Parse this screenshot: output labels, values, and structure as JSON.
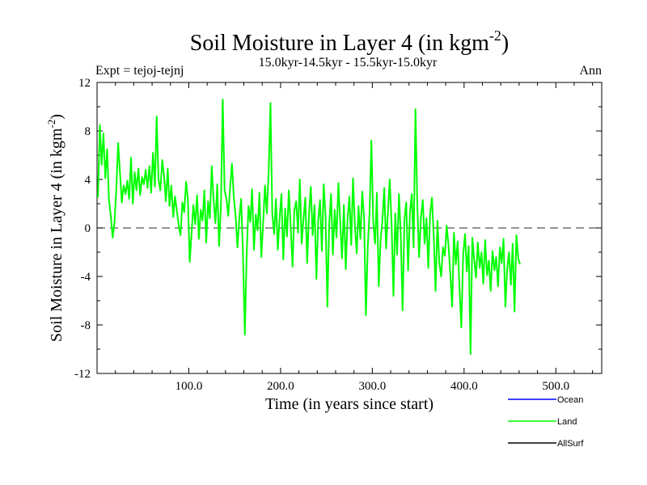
{
  "chart_data": {
    "type": "line",
    "title_main": "Soil Moisture in Layer 4 (in kgm",
    "title_sup": "-2",
    "title_close": ")",
    "subtitle": "15.0kyr-14.5kyr - 15.5kyr-15.0kyr",
    "expt_label": "Expt = tejoj-tejnj",
    "season_label": "Ann",
    "xlabel": "Time (in years since start)",
    "ylabel_main": "Soil Moisture in Layer 4 (in kgm",
    "ylabel_sup": "-2",
    "ylabel_close": ")",
    "xlim": [
      0,
      550
    ],
    "ylim": [
      -12,
      12
    ],
    "x_ticks": [
      100,
      200,
      300,
      400,
      500
    ],
    "x_tick_labels": [
      "100.0",
      "200.0",
      "300.0",
      "400.0",
      "500.0"
    ],
    "y_ticks": [
      -12,
      -8,
      -4,
      0,
      4,
      8,
      12
    ],
    "y_tick_labels": [
      "-12",
      "-8",
      "-4",
      "0",
      "4",
      "8",
      "12"
    ],
    "zero_line": true,
    "legend_position": "bottom-right",
    "legend": [
      {
        "name": "Ocean",
        "color": "#0000ff"
      },
      {
        "name": "Land",
        "color": "#00ff00"
      },
      {
        "name": "AllSurf",
        "color": "#000000"
      }
    ],
    "series": [
      {
        "name": "Land",
        "color": "#00ff00",
        "x_start": 1,
        "x_step": 2,
        "values": [
          2.5,
          8.5,
          5.2,
          7.8,
          4.1,
          6.5,
          2.3,
          1.0,
          -0.8,
          0.5,
          3.2,
          7.0,
          4.5,
          2.1,
          3.5,
          2.8,
          3.9,
          2.4,
          5.8,
          2.0,
          4.6,
          3.1,
          4.9,
          2.7,
          4.2,
          3.6,
          4.8,
          3.3,
          5.1,
          2.9,
          6.2,
          3.4,
          9.2,
          4.0,
          3.1,
          5.6,
          4.3,
          2.2,
          4.9,
          1.8,
          3.5,
          0.9,
          2.6,
          1.4,
          0.2,
          -0.6,
          2.1,
          1.3,
          3.8,
          2.4,
          -2.8,
          -0.4,
          1.9,
          0.3,
          2.7,
          -0.9,
          1.5,
          0.6,
          3.1,
          -1.2,
          2.2,
          0.8,
          5.1,
          2.3,
          0.4,
          3.6,
          -1.5,
          1.9,
          10.6,
          3.1,
          2.4,
          1.0,
          3.3,
          5.3,
          2.6,
          1.0,
          -1.6,
          0.8,
          2.4,
          -2.0,
          -8.8,
          -2.5,
          1.8,
          0.5,
          3.2,
          -1.8,
          1.1,
          -0.2,
          2.9,
          -2.4,
          0.4,
          3.5,
          1.2,
          4.6,
          10.3,
          1.1,
          -0.5,
          2.4,
          -1.8,
          0.9,
          2.8,
          -2.6,
          1.6,
          -0.7,
          3.1,
          0.2,
          -3.2,
          1.4,
          2.2,
          -0.4,
          4.0,
          -1.3,
          0.8,
          2.5,
          -2.9,
          1.2,
          3.4,
          -0.6,
          1.9,
          -4.2,
          0.6,
          2.3,
          -1.9,
          3.6,
          1.0,
          -6.5,
          0.3,
          2.8,
          -2.2,
          1.5,
          -0.8,
          3.7,
          0.4,
          -2.5,
          1.9,
          -3.4,
          0.7,
          2.6,
          -1.4,
          4.1,
          0.2,
          -2.1,
          1.8,
          -0.9,
          3.0,
          0.8,
          -7.2,
          -1.6,
          1.3,
          7.2,
          0.5,
          -1.3,
          2.9,
          -4.8,
          -1.0,
          0.6,
          3.3,
          -1.7,
          1.4,
          4.0,
          0.3,
          -5.6,
          1.2,
          -2.2,
          2.8,
          -0.5,
          -6.8,
          0.7,
          2.1,
          -3.5,
          1.3,
          2.8,
          -1.6,
          9.8,
          1.9,
          -2.4,
          0.9,
          2.3,
          -1.3,
          0.8,
          -3.3,
          1.1,
          2.5,
          -0.8,
          -5.2,
          0.6,
          -2.9,
          -4.0,
          -1.6,
          -2.3,
          0.2,
          -1.4,
          -3.8,
          -6.5,
          -0.4,
          -3.0,
          -1.1,
          -4.9,
          -8.2,
          -2.2,
          -0.5,
          -3.6,
          -1.5,
          -10.4,
          -0.8,
          -2.6,
          -4.1,
          -1.2,
          -3.3,
          -2.0,
          -4.6,
          -1.0,
          -3.9,
          -2.7,
          -5.2,
          -1.9,
          -3.5,
          -2.4,
          -4.8,
          -1.6,
          -2.9,
          -0.9,
          -6.5,
          -3.4,
          -2.0,
          -4.7,
          -1.3,
          -6.9,
          -0.6,
          -2.5,
          -3.0
        ]
      }
    ]
  }
}
